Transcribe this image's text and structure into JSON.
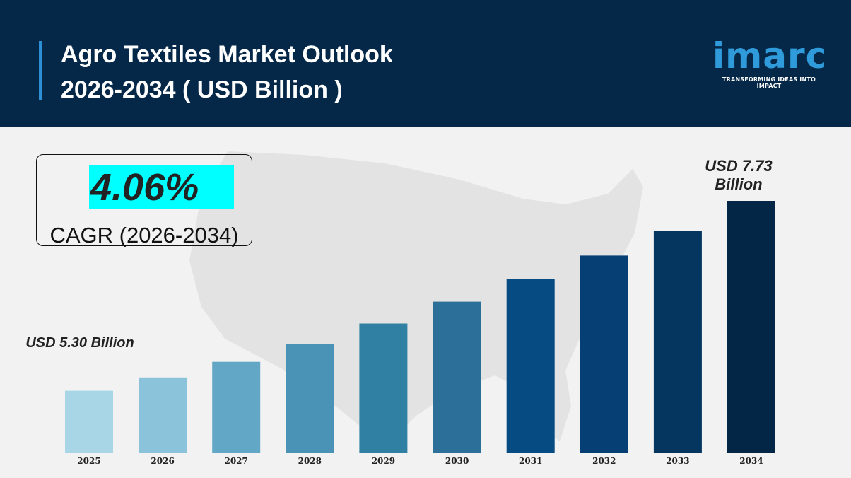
{
  "header": {
    "title_line1": "Agro Textiles Market Outlook",
    "title_line2": "2026-2034 ( USD Billion )"
  },
  "logo": {
    "word": "imarc",
    "tagline": "TRANSFORMING IDEAS INTO IMPACT",
    "color": "#2f9bdb"
  },
  "cagr": {
    "value": "4.06%",
    "label": "CAGR (2026-2034)",
    "highlight_color": "#00ffff"
  },
  "callouts": {
    "start": "USD 5.30 Billion",
    "end_line1": "USD 7.73",
    "end_line2": "Billion"
  },
  "chart_data": {
    "type": "bar",
    "title": "Agro Textiles Market Outlook 2026-2034 ( USD Billion )",
    "categories": [
      "2025",
      "2026",
      "2027",
      "2028",
      "2029",
      "2030",
      "2031",
      "2032",
      "2033",
      "2034"
    ],
    "values": [
      5.3,
      5.47,
      5.67,
      5.9,
      6.16,
      6.44,
      6.73,
      7.03,
      7.35,
      7.73
    ],
    "colors": [
      "#a9d6e6",
      "#8bc3da",
      "#63a7c6",
      "#4a92b6",
      "#2f80a3",
      "#2c6f98",
      "#064c83",
      "#053f74",
      "#05365f",
      "#042646"
    ],
    "xlabel": "",
    "ylabel": "",
    "ylim": [
      4.5,
      7.73
    ],
    "grid": false,
    "legend": "none"
  }
}
